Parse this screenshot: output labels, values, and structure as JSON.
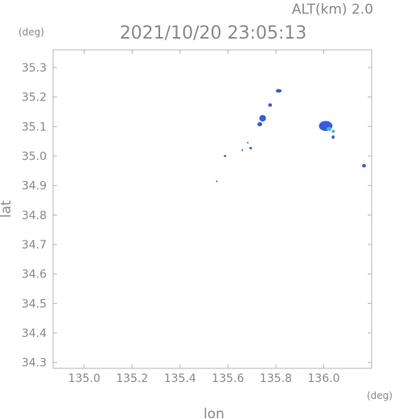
{
  "header": {
    "altitude_label": "ALT(km)  2.0",
    "datetime": "2021/10/20 23:05:13"
  },
  "chart_data": {
    "type": "scatter",
    "title": "2021/10/20 23:05:13",
    "xlabel": "lon",
    "ylabel": "lat",
    "x_unit": "(deg)",
    "y_unit": "(deg)",
    "xlim": [
      134.87,
      136.2
    ],
    "ylim": [
      34.28,
      35.36
    ],
    "x_ticks": [
      "135.0",
      "135.2",
      "135.4",
      "135.6",
      "135.8",
      "136.0"
    ],
    "x_tick_values": [
      135.0,
      135.2,
      135.4,
      135.6,
      135.8,
      136.0
    ],
    "y_ticks": [
      "34.3",
      "34.4",
      "34.5",
      "34.6",
      "34.7",
      "34.8",
      "34.9",
      "35.0",
      "35.1",
      "35.2",
      "35.3"
    ],
    "y_tick_values": [
      34.3,
      34.4,
      34.5,
      34.6,
      34.7,
      34.8,
      34.9,
      35.0,
      35.1,
      35.2,
      35.3
    ],
    "grid": false,
    "colors": {
      "low": "#3a5ad8",
      "high": "#3ab8f0",
      "axis": "#b4b4b4",
      "text": "#8a8a8a"
    },
    "echoes": [
      {
        "lon": 135.812,
        "lat": 35.221,
        "rx": 0.012,
        "ry": 0.006,
        "level": 0.1
      },
      {
        "lon": 135.776,
        "lat": 35.173,
        "rx": 0.008,
        "ry": 0.006,
        "level": 0.1
      },
      {
        "lon": 135.745,
        "lat": 35.128,
        "rx": 0.014,
        "ry": 0.011,
        "level": 0.15
      },
      {
        "lon": 135.733,
        "lat": 35.108,
        "rx": 0.01,
        "ry": 0.007,
        "level": 0.1
      },
      {
        "lon": 136.008,
        "lat": 35.102,
        "rx": 0.028,
        "ry": 0.017,
        "level": 0.2
      },
      {
        "lon": 136.022,
        "lat": 35.092,
        "rx": 0.01,
        "ry": 0.007,
        "level": 0.8
      },
      {
        "lon": 136.04,
        "lat": 35.084,
        "rx": 0.007,
        "ry": 0.005,
        "level": 0.7
      },
      {
        "lon": 136.039,
        "lat": 35.064,
        "rx": 0.006,
        "ry": 0.006,
        "level": 0.1
      },
      {
        "lon": 136.168,
        "lat": 34.967,
        "rx": 0.008,
        "ry": 0.006,
        "level": 0.1
      },
      {
        "lon": 135.695,
        "lat": 35.027,
        "rx": 0.006,
        "ry": 0.004,
        "level": 0.1
      },
      {
        "lon": 135.683,
        "lat": 35.045,
        "rx": 0.003,
        "ry": 0.002,
        "level": 0.1
      },
      {
        "lon": 135.66,
        "lat": 35.02,
        "rx": 0.003,
        "ry": 0.002,
        "level": 0.1
      },
      {
        "lon": 135.588,
        "lat": 35.0,
        "rx": 0.005,
        "ry": 0.003,
        "level": 0.1
      },
      {
        "lon": 135.553,
        "lat": 34.914,
        "rx": 0.003,
        "ry": 0.002,
        "level": 0.1
      }
    ]
  }
}
